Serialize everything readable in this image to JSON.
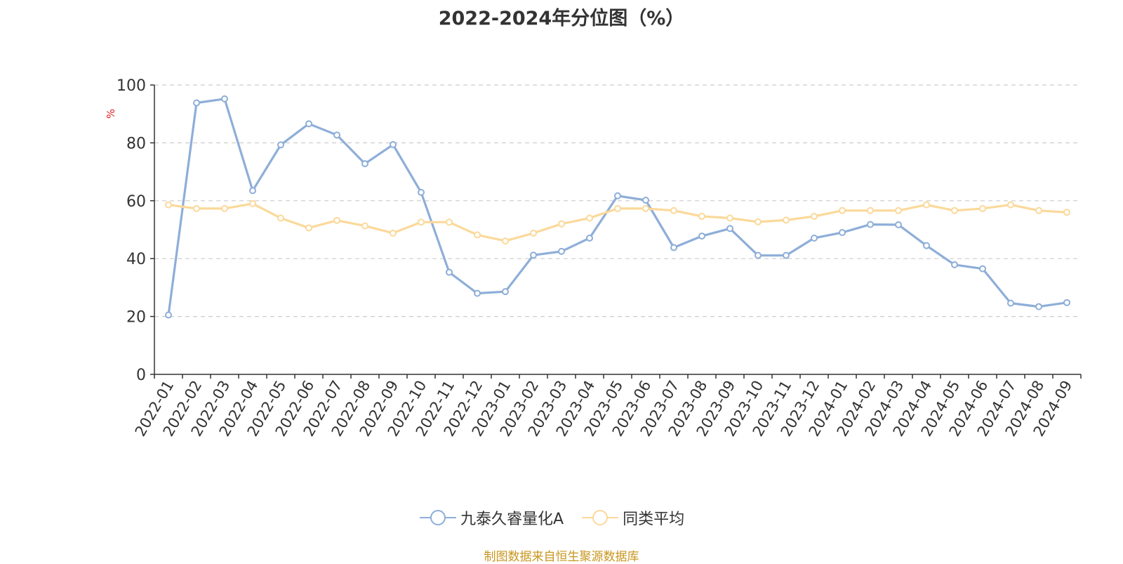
{
  "colors": {
    "series_a": "#8eaed8",
    "series_b": "#fbd99a",
    "unit_label": "#e02020",
    "source": "#c8961e"
  },
  "legend": {
    "series_a_label": "九泰久睿量化A",
    "series_b_label": "同类平均"
  },
  "source_text": "制图数据来自恒生聚源数据库",
  "chart_data": {
    "type": "line",
    "title": "2022-2024年分位图（%）",
    "ylabel": "%",
    "xlabel": "",
    "ylim": [
      0,
      100
    ],
    "yticks": [
      0,
      20,
      40,
      60,
      80,
      100
    ],
    "grid": true,
    "legend_position": "bottom",
    "categories": [
      "2022-01",
      "2022-02",
      "2022-03",
      "2022-04",
      "2022-05",
      "2022-06",
      "2022-07",
      "2022-08",
      "2022-09",
      "2022-10",
      "2022-11",
      "2022-12",
      "2023-01",
      "2023-02",
      "2023-03",
      "2023-04",
      "2023-05",
      "2023-06",
      "2023-07",
      "2023-08",
      "2023-09",
      "2023-10",
      "2023-11",
      "2023-12",
      "2024-01",
      "2024-02",
      "2024-03",
      "2024-04",
      "2024-05",
      "2024-06",
      "2024-07",
      "2024-08",
      "2024-09"
    ],
    "series": [
      {
        "name": "九泰久睿量化A",
        "values": [
          20.5,
          93.8,
          95.2,
          63.5,
          79.3,
          86.6,
          82.7,
          72.8,
          79.4,
          62.9,
          35.3,
          28.0,
          28.6,
          41.2,
          42.5,
          47.1,
          61.7,
          60.2,
          43.8,
          47.8,
          50.4,
          41.1,
          41.1,
          47.1,
          49.0,
          51.8,
          51.7,
          44.5,
          37.9,
          36.5,
          24.6,
          23.4,
          24.8
        ]
      },
      {
        "name": "同类平均",
        "values": [
          58.6,
          57.3,
          57.3,
          59.0,
          54.0,
          50.6,
          53.2,
          51.3,
          48.8,
          52.6,
          52.6,
          48.2,
          46.1,
          48.8,
          52.0,
          54.0,
          57.3,
          57.3,
          56.6,
          54.6,
          54.0,
          52.7,
          53.3,
          54.6,
          56.6,
          56.6,
          56.6,
          58.6,
          56.6,
          57.3,
          58.6,
          56.6,
          56.0
        ]
      }
    ]
  }
}
